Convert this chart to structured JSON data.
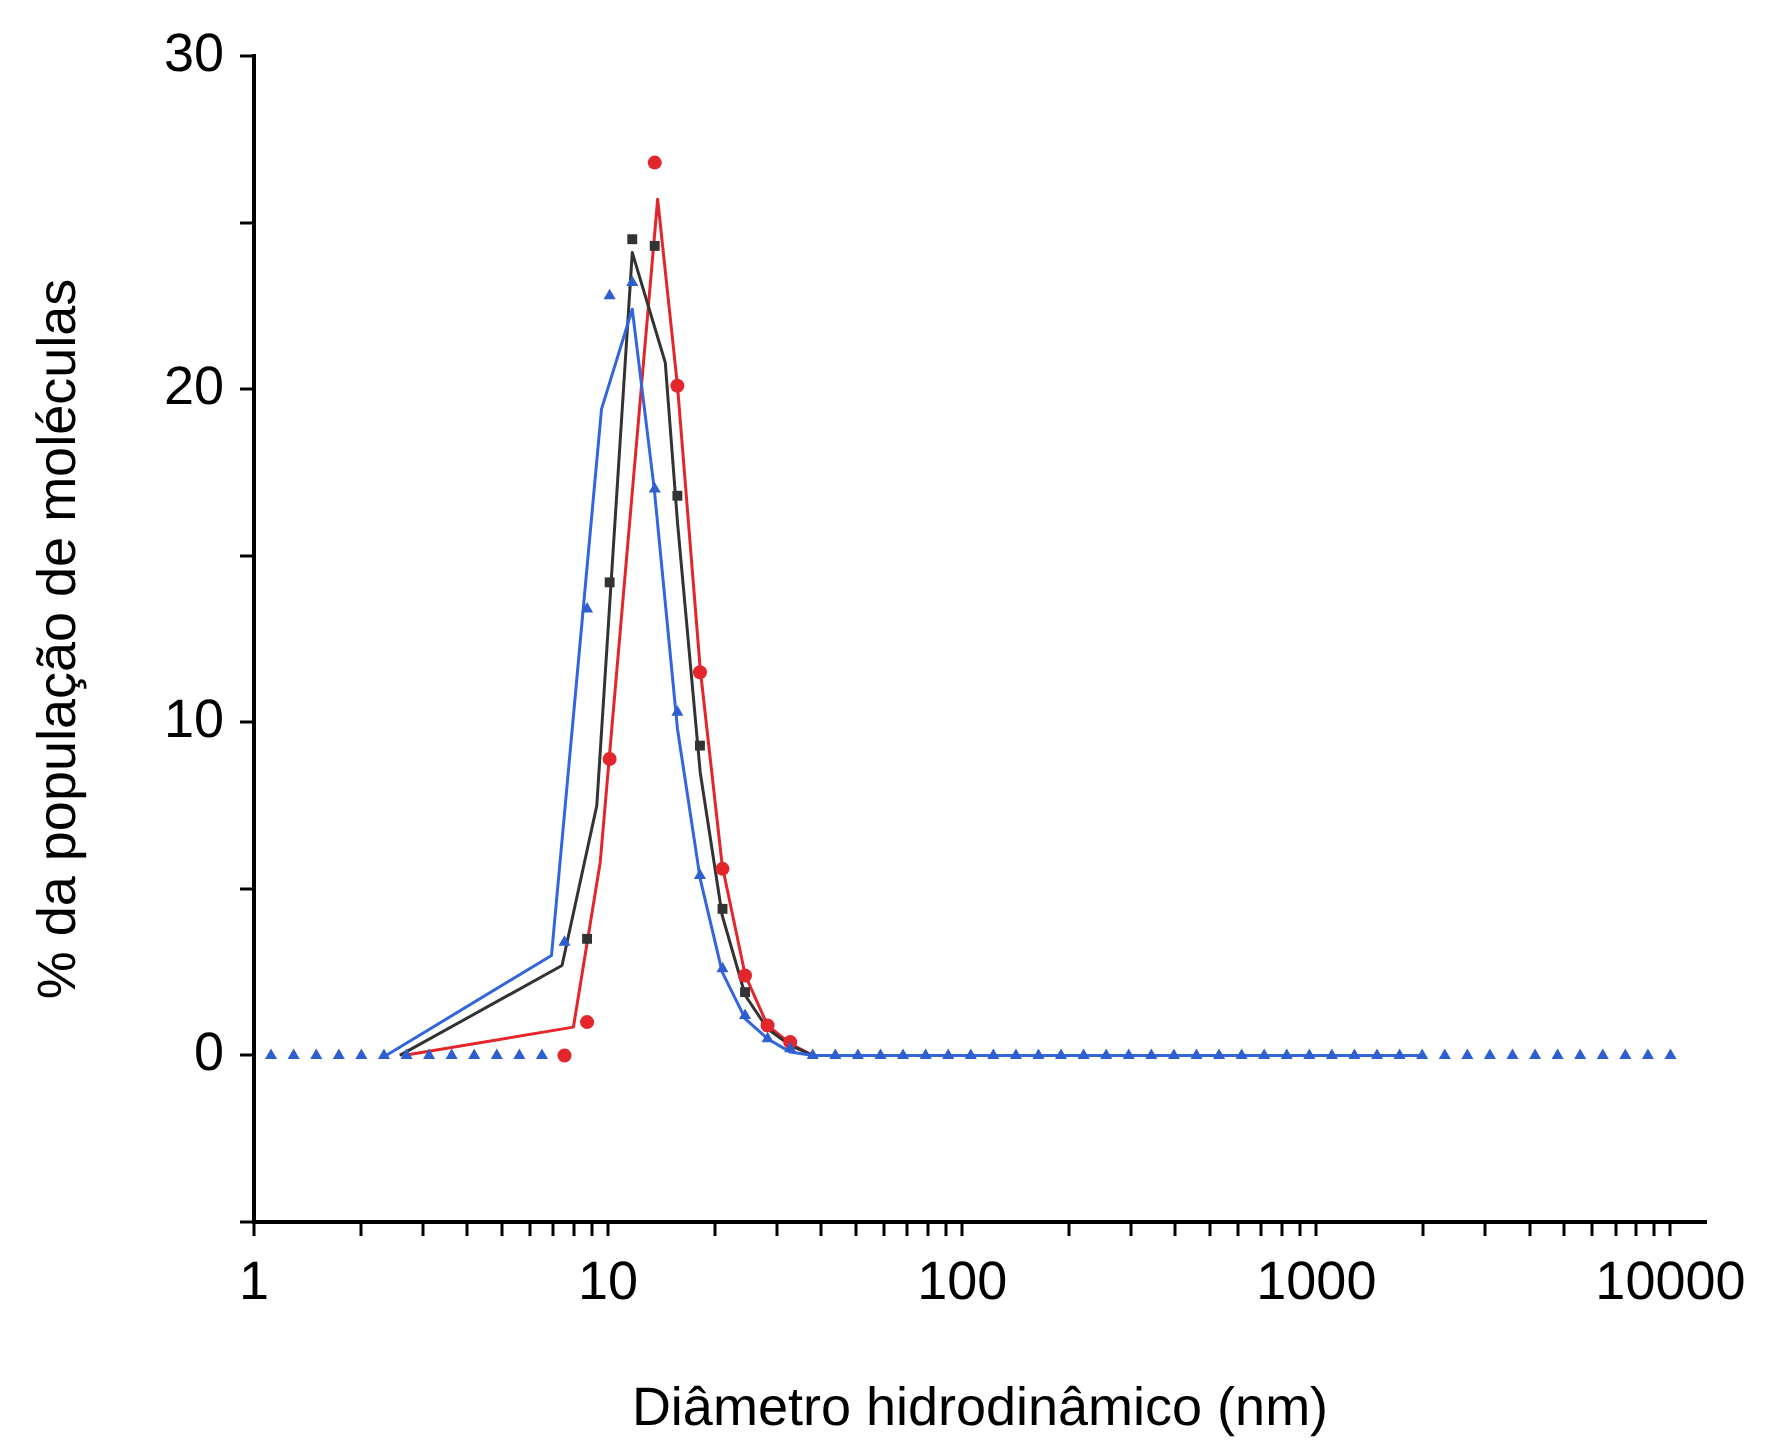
{
  "chart_data": {
    "type": "scatter",
    "xlabel": "Diâmetro hidrodinâmico (nm)",
    "ylabel": "% da população de moléculas",
    "log": "x",
    "grid": false,
    "legend": false,
    "xlim": [
      1,
      12600
    ],
    "ylim": [
      -5,
      30
    ],
    "xticks": [
      1,
      {
        "value": 2,
        "label": null
      },
      {
        "value": 3,
        "label": null
      },
      {
        "value": 4,
        "label": null
      },
      {
        "value": 5,
        "label": null
      },
      {
        "value": 6,
        "label": null
      },
      {
        "value": 7,
        "label": null
      },
      {
        "value": 8,
        "label": null
      },
      {
        "value": 9,
        "label": null
      },
      10,
      {
        "value": 20,
        "label": null
      },
      {
        "value": 30,
        "label": null
      },
      {
        "value": 40,
        "label": null
      },
      {
        "value": 50,
        "label": null
      },
      {
        "value": 60,
        "label": null
      },
      {
        "value": 70,
        "label": null
      },
      {
        "value": 80,
        "label": null
      },
      {
        "value": 90,
        "label": null
      },
      100,
      {
        "value": 200,
        "label": null
      },
      {
        "value": 300,
        "label": null
      },
      {
        "value": 400,
        "label": null
      },
      {
        "value": 500,
        "label": null
      },
      {
        "value": 600,
        "label": null
      },
      {
        "value": 700,
        "label": null
      },
      {
        "value": 800,
        "label": null
      },
      {
        "value": 900,
        "label": null
      },
      1000,
      {
        "value": 2000,
        "label": null
      },
      {
        "value": 3000,
        "label": null
      },
      {
        "value": 4000,
        "label": null
      },
      {
        "value": 5000,
        "label": null
      },
      {
        "value": 6000,
        "label": null
      },
      {
        "value": 7000,
        "label": null
      },
      {
        "value": 8000,
        "label": null
      },
      {
        "value": 9000,
        "label": null
      },
      10000
    ],
    "yticks": [
      {
        "value": -5,
        "label": null
      },
      0,
      {
        "value": 5,
        "label": null
      },
      10,
      {
        "value": 15,
        "label": null
      },
      20,
      {
        "value": 25,
        "label": null
      },
      30
    ],
    "x": [
      1.117,
      1.294,
      1.499,
      1.736,
      2.01,
      2.328,
      2.696,
      3.122,
      3.615,
      4.187,
      4.849,
      5.615,
      6.503,
      7.531,
      8.721,
      10.1,
      11.7,
      13.54,
      15.69,
      18.17,
      21.04,
      24.36,
      28.21,
      32.67,
      37.84,
      43.82,
      50.75,
      58.77,
      68.06,
      78.82,
      91.28,
      105.7,
      122.4,
      141.8,
      164.2,
      190.1,
      220.2,
      255,
      295.3,
      342,
      396.1,
      458.7,
      531.2,
      615.1,
      712.4,
      825,
      955.4,
      1106,
      1281,
      1484,
      1718,
      1990,
      2305,
      2669,
      3091,
      3580,
      4146,
      4801,
      5560,
      6439,
      7457,
      8636,
      10000
    ],
    "series": [
      {
        "type": "line",
        "marker": "none",
        "line_style": "solid",
        "color": "#e3262b",
        "x": [
          2.64,
          7.98,
          9.5,
          13.8,
          15.7,
          18.2,
          21.0,
          24.4,
          28.2,
          32.7,
          37.8
        ],
        "values": [
          0,
          0.85,
          5.8,
          25.7,
          20.1,
          11.6,
          5.7,
          2.4,
          0.9,
          0.35,
          0
        ]
      },
      {
        "type": "line",
        "marker": "none",
        "line_style": "solid",
        "color": "#333333",
        "x": [
          2.58,
          7.41,
          9.29,
          11.7,
          14.5,
          15.7,
          18.2,
          21.0,
          24.4,
          28.2,
          32.7,
          37.8
        ],
        "values": [
          0,
          2.7,
          7.5,
          24.1,
          20.8,
          16,
          8.5,
          4.2,
          1.8,
          0.8,
          0.3,
          0
        ]
      },
      {
        "type": "line",
        "marker": "none",
        "line_style": "solid",
        "color": "#3366dd",
        "x": [
          2.36,
          6.92,
          9.58,
          11.7,
          13.5,
          15.7,
          18.2,
          21.0,
          24.4,
          28.2,
          32.7,
          38,
          1990
        ],
        "values": [
          0,
          3.0,
          19.4,
          22.4,
          17,
          9.8,
          5.3,
          2.5,
          1.1,
          0.5,
          0.1,
          0,
          0
        ]
      },
      {
        "marker": "square",
        "color": "#333333",
        "values": [
          null,
          null,
          null,
          null,
          null,
          null,
          null,
          null,
          null,
          null,
          null,
          null,
          null,
          null,
          3.5,
          14.2,
          24.5,
          24.3,
          16.8,
          9.3,
          4.4,
          1.9,
          null,
          null,
          null,
          null,
          null,
          null,
          null,
          null,
          null,
          null,
          null,
          null,
          null,
          null,
          null,
          null,
          null,
          null,
          null,
          null,
          null,
          null,
          null,
          null,
          null,
          null,
          null,
          null,
          null,
          null,
          null,
          null,
          null,
          null,
          null,
          null,
          null,
          null,
          null,
          null,
          null
        ]
      },
      {
        "marker": "circle",
        "color": "#e3262b",
        "values": [
          null,
          null,
          null,
          null,
          null,
          null,
          null,
          null,
          null,
          null,
          null,
          null,
          null,
          0,
          1.0,
          8.9,
          null,
          26.8,
          20.1,
          11.5,
          5.6,
          2.4,
          0.9,
          0.4,
          null,
          null,
          null,
          null,
          null,
          null,
          null,
          null,
          null,
          null,
          null,
          null,
          null,
          null,
          null,
          null,
          null,
          null,
          null,
          null,
          null,
          null,
          null,
          null,
          null,
          null,
          null,
          null,
          null,
          null,
          null,
          null,
          null,
          null,
          null,
          null,
          null,
          null,
          null
        ]
      },
      {
        "marker": "triangle",
        "color": "#2f5fcf",
        "values": [
          0,
          0,
          0,
          0,
          0,
          0,
          0,
          0,
          0,
          0,
          0,
          0,
          0,
          3.4,
          13.4,
          22.8,
          23.2,
          17.0,
          10.3,
          5.4,
          2.6,
          1.2,
          0.5,
          0.2,
          0,
          0,
          0,
          0,
          0,
          0,
          0,
          0,
          0,
          0,
          0,
          0,
          0,
          0,
          0,
          0,
          0,
          0,
          0,
          0,
          0,
          0,
          0,
          0,
          0,
          0,
          0,
          0,
          0,
          0,
          0,
          0,
          0,
          0,
          0,
          0,
          0,
          0,
          0
        ]
      }
    ]
  }
}
